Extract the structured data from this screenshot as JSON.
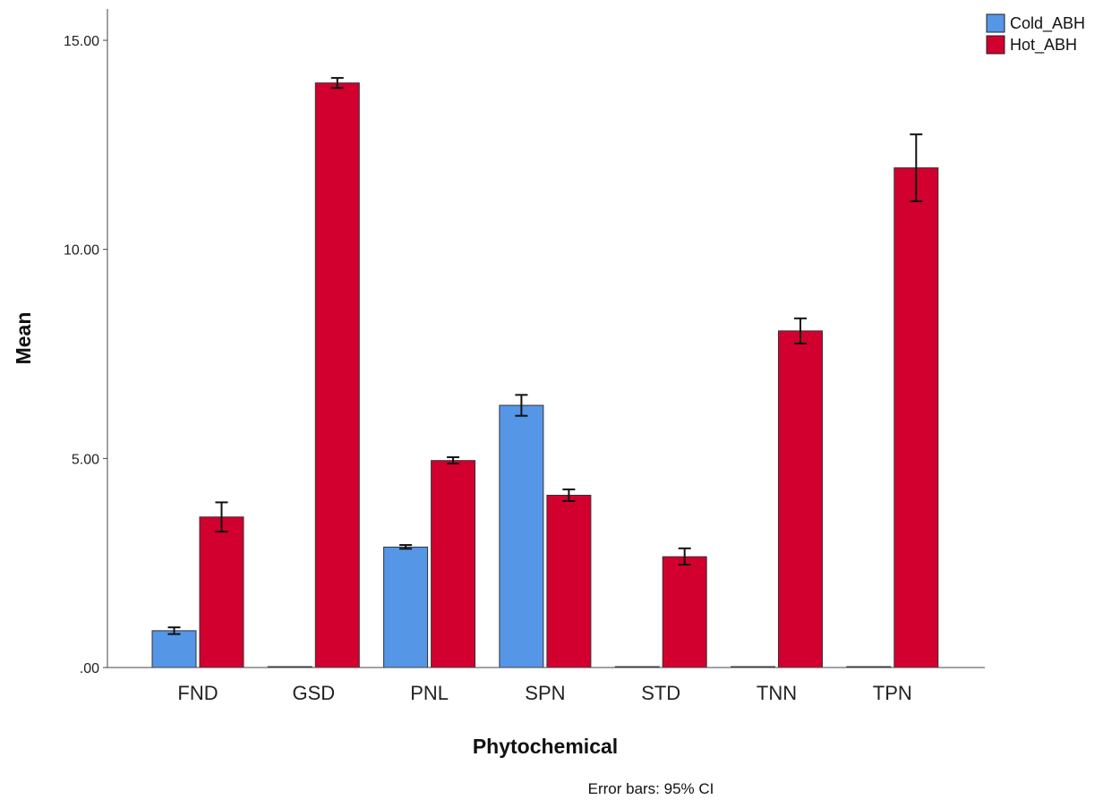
{
  "chart_data": {
    "type": "bar",
    "xlabel": "Phytochemical",
    "ylabel": "Mean",
    "ylim": [
      0,
      15.5
    ],
    "yticks": [
      0,
      5,
      10,
      15
    ],
    "ytick_labels": [
      ".00",
      "5.00",
      "10.00",
      "15.00"
    ],
    "categories": [
      "FND",
      "GSD",
      "PNL",
      "SPN",
      "STD",
      "TNN",
      "TPN"
    ],
    "series": [
      {
        "name": "Cold_ABH",
        "color": "#5596e6",
        "values": [
          0.88,
          0,
          2.88,
          6.27,
          0,
          0,
          0
        ],
        "ci": [
          [
            0.8,
            0.96
          ],
          [
            0,
            0
          ],
          [
            2.84,
            2.93
          ],
          [
            6.02,
            6.52
          ],
          [
            0,
            0
          ],
          [
            0,
            0
          ],
          [
            0,
            0
          ]
        ]
      },
      {
        "name": "Hot_ABH",
        "color": "#d1002f",
        "values": [
          3.6,
          13.98,
          4.95,
          4.12,
          2.65,
          8.05,
          11.95
        ],
        "ci": [
          [
            3.25,
            3.95
          ],
          [
            13.86,
            14.1
          ],
          [
            4.88,
            5.03
          ],
          [
            3.98,
            4.26
          ],
          [
            2.46,
            2.85
          ],
          [
            7.75,
            8.35
          ],
          [
            11.15,
            12.75
          ]
        ]
      }
    ],
    "legend_position": "top-right",
    "grid": false,
    "annotation": "Error bars: 95% CI"
  }
}
